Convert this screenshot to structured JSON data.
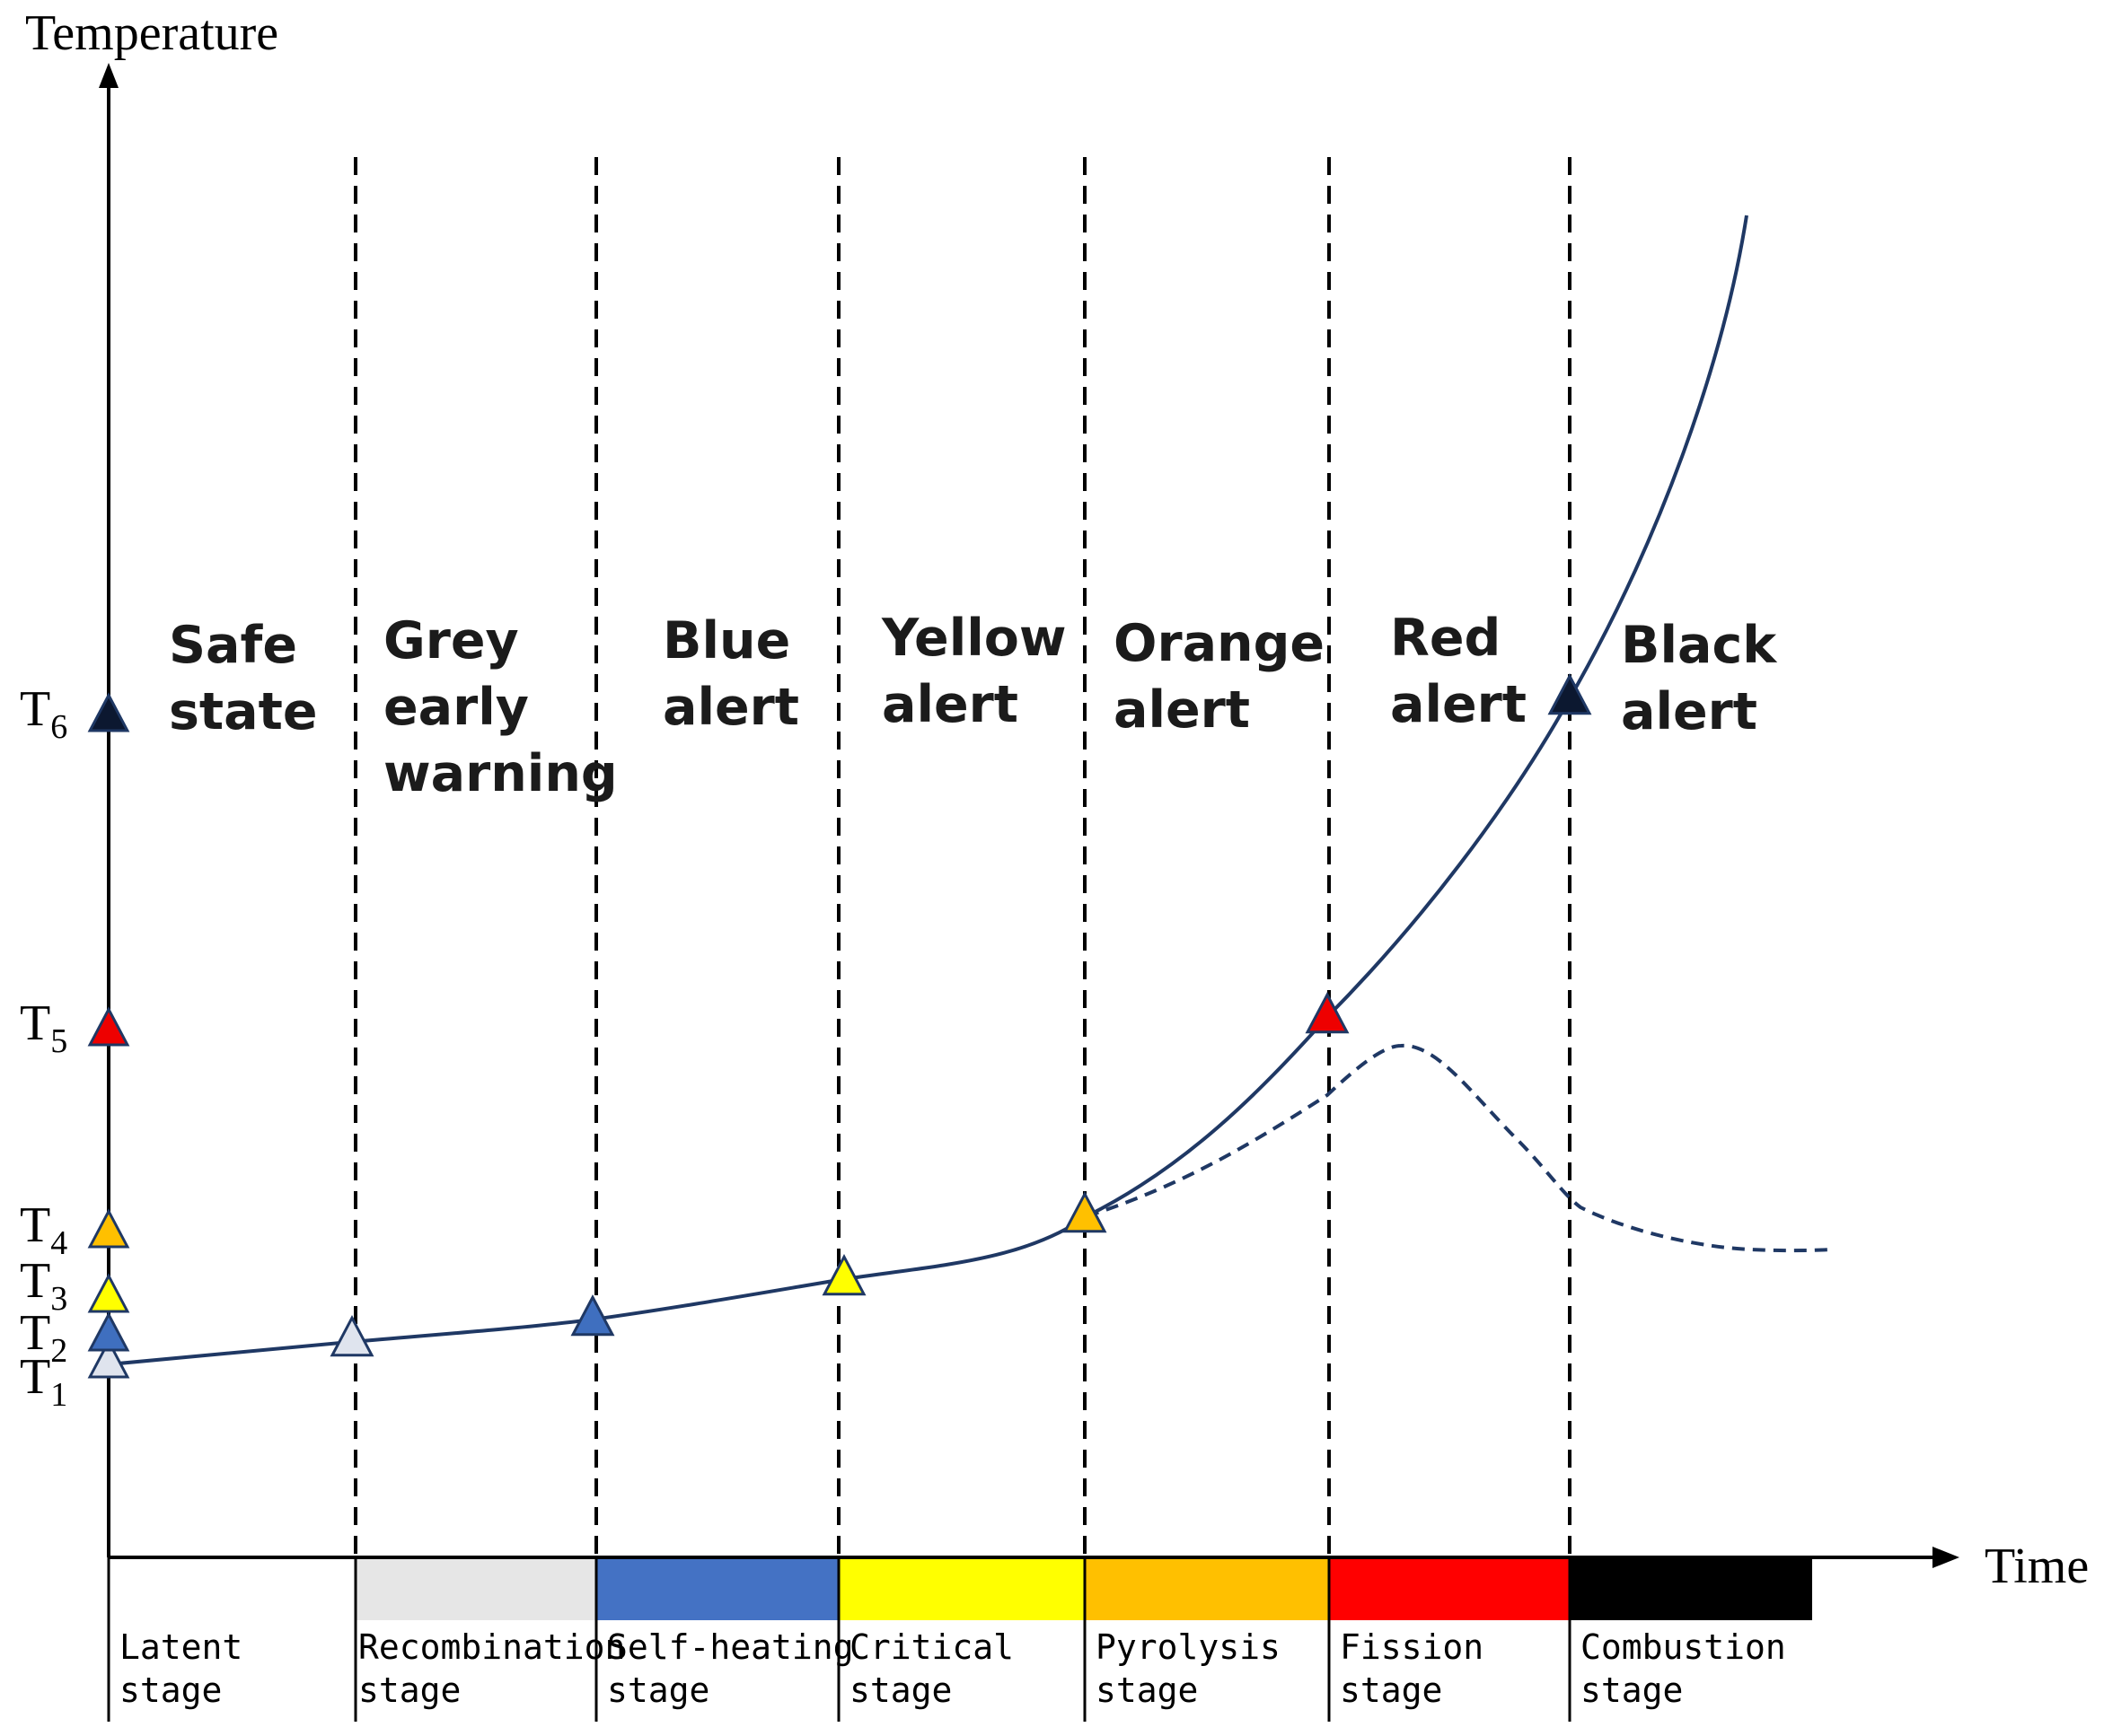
{
  "axes": {
    "y_label": "Temperature",
    "x_label": "Time"
  },
  "thresholds": [
    {
      "base": "T",
      "sub": "1",
      "color": "#dfe4ee"
    },
    {
      "base": "T",
      "sub": "2",
      "color": "#3f6fbf"
    },
    {
      "base": "T",
      "sub": "3",
      "color": "#ffff00"
    },
    {
      "base": "T",
      "sub": "4",
      "color": "#ffc000"
    },
    {
      "base": "T",
      "sub": "5",
      "color": "#ee0000"
    },
    {
      "base": "T",
      "sub": "6",
      "color": "#0c1830"
    }
  ],
  "states": [
    {
      "lines": [
        "Safe",
        "state"
      ]
    },
    {
      "lines": [
        "Grey",
        "early",
        "warning"
      ]
    },
    {
      "lines": [
        "Blue",
        "alert"
      ]
    },
    {
      "lines": [
        "Yellow",
        "alert"
      ]
    },
    {
      "lines": [
        "Orange",
        "alert"
      ]
    },
    {
      "lines": [
        "Red",
        "alert"
      ]
    },
    {
      "lines": [
        "Black",
        "alert"
      ]
    }
  ],
  "stages": [
    {
      "lines": [
        "Latent",
        "stage"
      ],
      "color": "#ffffff"
    },
    {
      "lines": [
        "Recombination",
        "stage"
      ],
      "color": "#e6e6e6"
    },
    {
      "lines": [
        "Self-heating",
        "stage"
      ],
      "color": "#4472c4"
    },
    {
      "lines": [
        "Critical",
        "stage"
      ],
      "color": "#ffff00"
    },
    {
      "lines": [
        "Pyrolysis",
        "stage"
      ],
      "color": "#ffc000"
    },
    {
      "lines": [
        "Fission",
        "stage"
      ],
      "color": "#ff0000"
    },
    {
      "lines": [
        "Combustion",
        "stage"
      ],
      "color": "#000000"
    }
  ],
  "colors": {
    "curve": "#1f3864",
    "axis": "#000000"
  }
}
